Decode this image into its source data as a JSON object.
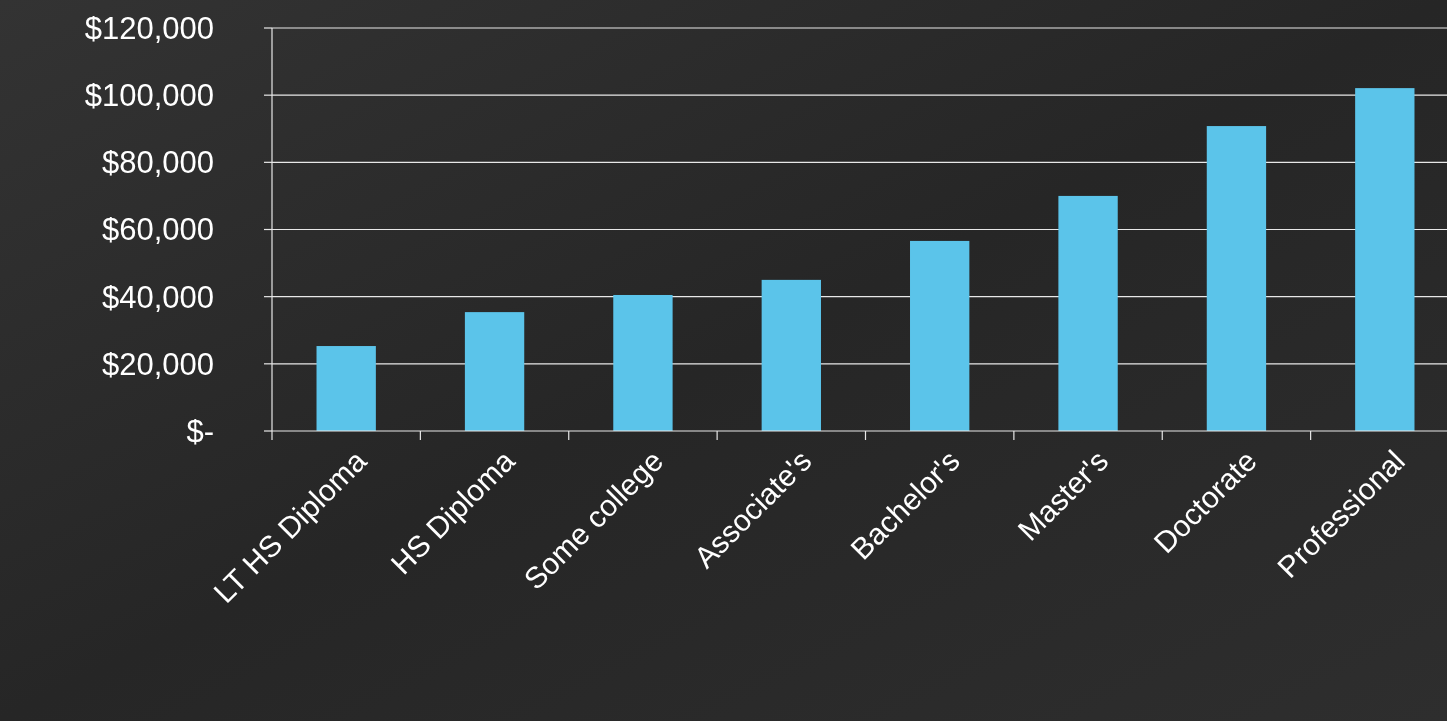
{
  "chart_data": {
    "type": "bar",
    "categories": [
      "LT HS Diploma",
      "HS Diploma",
      "Some college",
      "Associate's",
      "Bachelor's",
      "Master's",
      "Doctorate",
      "Professional"
    ],
    "values": [
      25300,
      35400,
      40500,
      45000,
      56600,
      70000,
      90800,
      102100
    ],
    "color": "#5bc4ea",
    "ylim": [
      0,
      120000
    ],
    "yticks": [
      {
        "value": 0,
        "label": "$-"
      },
      {
        "value": 20000,
        "label": "$20,000"
      },
      {
        "value": 40000,
        "label": "$40,000"
      },
      {
        "value": 60000,
        "label": "$60,000"
      },
      {
        "value": 80000,
        "label": "$80,000"
      },
      {
        "value": 100000,
        "label": "$100,000"
      },
      {
        "value": 120000,
        "label": "$120,000"
      }
    ],
    "grid": "y"
  }
}
